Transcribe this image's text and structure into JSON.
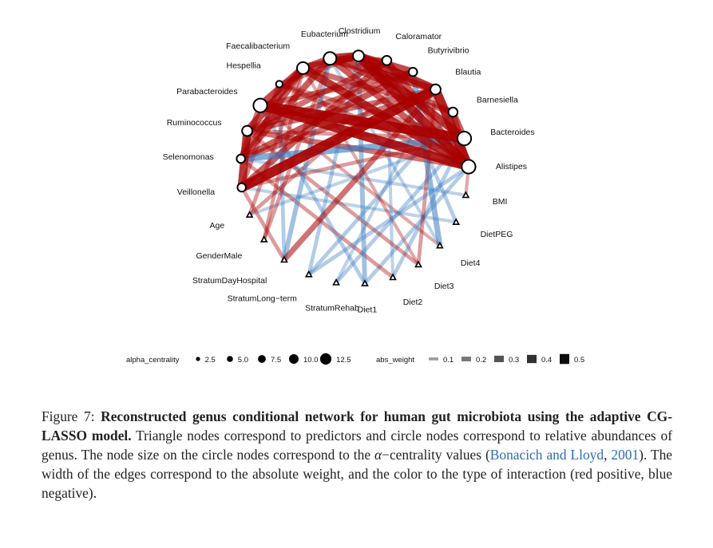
{
  "legend": {
    "centrality_title": "alpha_centrality",
    "centrality_items": [
      {
        "label": "2.5",
        "value": 2.5
      },
      {
        "label": "5.0",
        "value": 5.0
      },
      {
        "label": "7.5",
        "value": 7.5
      },
      {
        "label": "10.0",
        "value": 10.0
      },
      {
        "label": "12.5",
        "value": 12.5
      }
    ],
    "weight_title": "abs_weight",
    "weight_items": [
      {
        "label": "0.1",
        "value": 0.1
      },
      {
        "label": "0.2",
        "value": 0.2
      },
      {
        "label": "0.3",
        "value": 0.3
      },
      {
        "label": "0.4",
        "value": 0.4
      },
      {
        "label": "0.5",
        "value": 0.5
      }
    ]
  },
  "colors": {
    "positive": "#a80000",
    "negative": "#3a7cc0",
    "node_fill": "#ffffff",
    "node_stroke": "#000000",
    "link": "#2e6eb5"
  },
  "network": {
    "nodes": [
      {
        "id": "Clostridium",
        "label": "Clostridium",
        "shape": "circle",
        "centrality": 8
      },
      {
        "id": "Caloramator",
        "label": "Caloramator",
        "shape": "circle",
        "centrality": 6
      },
      {
        "id": "Butyrivibrio",
        "label": "Butyrivibrio",
        "shape": "circle",
        "centrality": 5
      },
      {
        "id": "Blautia",
        "label": "Blautia",
        "shape": "circle",
        "centrality": 7
      },
      {
        "id": "Barnesiella",
        "label": "Barnesiella",
        "shape": "circle",
        "centrality": 6
      },
      {
        "id": "Bacteroides",
        "label": "Bacteroides",
        "shape": "circle",
        "centrality": 11
      },
      {
        "id": "Alistipes",
        "label": "Alistipes",
        "shape": "circle",
        "centrality": 11
      },
      {
        "id": "BMI",
        "label": "BMI",
        "shape": "triangle"
      },
      {
        "id": "DietPEG",
        "label": "DietPEG",
        "shape": "triangle"
      },
      {
        "id": "Diet4",
        "label": "Diet4",
        "shape": "triangle"
      },
      {
        "id": "Diet3",
        "label": "Diet3",
        "shape": "triangle"
      },
      {
        "id": "Diet2",
        "label": "Diet2",
        "shape": "triangle"
      },
      {
        "id": "Diet1",
        "label": "Diet1",
        "shape": "triangle"
      },
      {
        "id": "StratumRehab",
        "label": "StratumRehab",
        "shape": "triangle"
      },
      {
        "id": "StratumLong-term",
        "label": "StratumLong−term",
        "shape": "triangle"
      },
      {
        "id": "StratumDayHospital",
        "label": "StratumDayHospital",
        "shape": "triangle"
      },
      {
        "id": "GenderMale",
        "label": "GenderMale",
        "shape": "triangle"
      },
      {
        "id": "Age",
        "label": "Age",
        "shape": "triangle"
      },
      {
        "id": "Veillonella",
        "label": "Veillonella",
        "shape": "circle",
        "centrality": 5
      },
      {
        "id": "Selenomonas",
        "label": "Selenomonas",
        "shape": "circle",
        "centrality": 5
      },
      {
        "id": "Ruminococcus",
        "label": "Ruminococcus",
        "shape": "circle",
        "centrality": 7
      },
      {
        "id": "Parabacteroides",
        "label": "Parabacteroides",
        "shape": "circle",
        "centrality": 11
      },
      {
        "id": "Hespellia",
        "label": "Hespellia",
        "shape": "circle",
        "centrality": 3
      },
      {
        "id": "Faecalibacterium",
        "label": "Faecalibacterium",
        "shape": "circle",
        "centrality": 9
      },
      {
        "id": "Eubacterium",
        "label": "Eubacterium",
        "shape": "circle",
        "centrality": 10
      }
    ],
    "edges": [
      {
        "source": "Parabacteroides",
        "target": "Bacteroides",
        "weight": 0.5,
        "sign": "positive"
      },
      {
        "source": "Parabacteroides",
        "target": "Alistipes",
        "weight": 0.45,
        "sign": "positive"
      },
      {
        "source": "Veillonella",
        "target": "Blautia",
        "weight": 0.5,
        "sign": "positive"
      },
      {
        "source": "Veillonella",
        "target": "Ruminococcus",
        "weight": 0.4,
        "sign": "positive"
      },
      {
        "source": "Clostridium",
        "target": "Alistipes",
        "weight": 0.45,
        "sign": "positive"
      },
      {
        "source": "Clostridium",
        "target": "Bacteroides",
        "weight": 0.4,
        "sign": "positive"
      },
      {
        "source": "Clostridium",
        "target": "Blautia",
        "weight": 0.4,
        "sign": "positive"
      },
      {
        "source": "Clostridium",
        "target": "Butyrivibrio",
        "weight": 0.35,
        "sign": "positive"
      },
      {
        "source": "Clostridium",
        "target": "Eubacterium",
        "weight": 0.4,
        "sign": "positive"
      },
      {
        "source": "Clostridium",
        "target": "Faecalibacterium",
        "weight": 0.35,
        "sign": "positive"
      },
      {
        "source": "Eubacterium",
        "target": "Faecalibacterium",
        "weight": 0.3,
        "sign": "positive"
      },
      {
        "source": "Faecalibacterium",
        "target": "Alistipes",
        "weight": 0.4,
        "sign": "positive"
      },
      {
        "source": "Faecalibacterium",
        "target": "Parabacteroides",
        "weight": 0.35,
        "sign": "positive"
      },
      {
        "source": "Faecalibacterium",
        "target": "Ruminococcus",
        "weight": 0.35,
        "sign": "positive"
      },
      {
        "source": "Faecalibacterium",
        "target": "Selenomonas",
        "weight": 0.3,
        "sign": "positive"
      },
      {
        "source": "Eubacterium",
        "target": "Selenomonas",
        "weight": 0.3,
        "sign": "positive"
      },
      {
        "source": "Eubacterium",
        "target": "Alistipes",
        "weight": 0.3,
        "sign": "positive"
      },
      {
        "source": "Eubacterium",
        "target": "Blautia",
        "weight": 0.35,
        "sign": "positive"
      },
      {
        "source": "Eubacterium",
        "target": "Caloramator",
        "weight": 0.25,
        "sign": "positive"
      },
      {
        "source": "Caloramator",
        "target": "Alistipes",
        "weight": 0.3,
        "sign": "positive"
      },
      {
        "source": "Caloramator",
        "target": "Ruminococcus",
        "weight": 0.25,
        "sign": "positive"
      },
      {
        "source": "Caloramator",
        "target": "Veillonella",
        "weight": 0.3,
        "sign": "positive"
      },
      {
        "source": "Butyrivibrio",
        "target": "Selenomonas",
        "weight": 0.3,
        "sign": "positive"
      },
      {
        "source": "Butyrivibrio",
        "target": "Parabacteroides",
        "weight": 0.25,
        "sign": "positive"
      },
      {
        "source": "Blautia",
        "target": "Alistipes",
        "weight": 0.45,
        "sign": "positive"
      },
      {
        "source": "Blautia",
        "target": "StratumDayHospital",
        "weight": 0.25,
        "sign": "positive"
      },
      {
        "source": "Blautia",
        "target": "Selenomonas",
        "weight": 0.25,
        "sign": "positive"
      },
      {
        "source": "Blautia",
        "target": "Ruminococcus",
        "weight": 0.25,
        "sign": "positive"
      },
      {
        "source": "Barnesiella",
        "target": "Bacteroides",
        "weight": 0.3,
        "sign": "positive"
      },
      {
        "source": "Barnesiella",
        "target": "Alistipes",
        "weight": 0.25,
        "sign": "positive"
      },
      {
        "source": "Barnesiella",
        "target": "Eubacterium",
        "weight": 0.25,
        "sign": "positive"
      },
      {
        "source": "Barnesiella",
        "target": "Faecalibacterium",
        "weight": 0.25,
        "sign": "positive"
      },
      {
        "source": "Ruminococcus",
        "target": "Alistipes",
        "weight": 0.25,
        "sign": "positive"
      },
      {
        "source": "Ruminococcus",
        "target": "Butyrivibrio",
        "weight": 0.25,
        "sign": "positive"
      },
      {
        "source": "Selenomonas",
        "target": "Parabacteroides",
        "weight": 0.25,
        "sign": "positive"
      },
      {
        "source": "Hespellia",
        "target": "Alistipes",
        "weight": 0.2,
        "sign": "positive"
      },
      {
        "source": "Hespellia",
        "target": "Clostridium",
        "weight": 0.2,
        "sign": "positive"
      },
      {
        "source": "Hespellia",
        "target": "Veillonella",
        "weight": 0.2,
        "sign": "positive"
      },
      {
        "source": "Selenomonas",
        "target": "Bacteroides",
        "weight": 0.3,
        "sign": "negative"
      },
      {
        "source": "Butyrivibrio",
        "target": "Diet4",
        "weight": 0.25,
        "sign": "negative"
      },
      {
        "source": "Eubacterium",
        "target": "StratumDayHospital",
        "weight": 0.2,
        "sign": "negative"
      },
      {
        "source": "Clostridium",
        "target": "Diet1",
        "weight": 0.2,
        "sign": "negative"
      },
      {
        "source": "Alistipes",
        "target": "Diet1",
        "weight": 0.15,
        "sign": "negative"
      },
      {
        "source": "Bacteroides",
        "target": "StratumRehab",
        "weight": 0.15,
        "sign": "negative"
      },
      {
        "source": "Bacteroides",
        "target": "Diet2",
        "weight": 0.15,
        "sign": "negative"
      },
      {
        "source": "Ruminococcus",
        "target": "Diet3",
        "weight": 0.15,
        "sign": "positive"
      },
      {
        "source": "Selenomonas",
        "target": "Diet2",
        "weight": 0.15,
        "sign": "positive"
      },
      {
        "source": "Veillonella",
        "target": "StratumDayHospital",
        "weight": 0.15,
        "sign": "positive"
      },
      {
        "source": "Parabacteroides",
        "target": "Diet1",
        "weight": 0.15,
        "sign": "negative"
      },
      {
        "source": "Faecalibacterium",
        "target": "GenderMale",
        "weight": 0.15,
        "sign": "positive"
      },
      {
        "source": "Faecalibacterium",
        "target": "Age",
        "weight": 0.15,
        "sign": "positive"
      },
      {
        "source": "Barnesiella",
        "target": "StratumLong-term",
        "weight": 0.15,
        "sign": "negative"
      },
      {
        "source": "Caloramator",
        "target": "DietPEG",
        "weight": 0.15,
        "sign": "negative"
      },
      {
        "source": "Hespellia",
        "target": "StratumDayHospital",
        "weight": 0.15,
        "sign": "negative"
      },
      {
        "source": "Blautia",
        "target": "Diet3",
        "weight": 0.15,
        "sign": "positive"
      },
      {
        "source": "Alistipes",
        "target": "StratumLong-term",
        "weight": 0.15,
        "sign": "negative"
      },
      {
        "source": "Bacteroides",
        "target": "Veillonella",
        "weight": 0.15,
        "sign": "positive"
      },
      {
        "source": "Eubacterium",
        "target": "GenderMale",
        "weight": 0.15,
        "sign": "positive"
      },
      {
        "source": "Butyrivibrio",
        "target": "Age",
        "weight": 0.15,
        "sign": "positive"
      },
      {
        "source": "Clostridium",
        "target": "StratumLong-term",
        "weight": 0.15,
        "sign": "negative"
      },
      {
        "source": "Hespellia",
        "target": "Bacteroides",
        "weight": 0.15,
        "sign": "positive"
      },
      {
        "source": "Ruminococcus",
        "target": "Bacteroides",
        "weight": 0.15,
        "sign": "positive"
      },
      {
        "source": "Selenomonas",
        "target": "BMI",
        "weight": 0.12,
        "sign": "negative"
      },
      {
        "source": "Veillonella",
        "target": "DietPEG",
        "weight": 0.12,
        "sign": "negative"
      },
      {
        "source": "Parabacteroides",
        "target": "Diet4",
        "weight": 0.12,
        "sign": "positive"
      },
      {
        "source": "Blautia",
        "target": "StratumRehab",
        "weight": 0.12,
        "sign": "negative"
      },
      {
        "source": "Caloramator",
        "target": "Diet2",
        "weight": 0.12,
        "sign": "negative"
      },
      {
        "source": "Faecalibacterium",
        "target": "Diet3",
        "weight": 0.12,
        "sign": "positive"
      },
      {
        "source": "Eubacterium",
        "target": "Diet4",
        "weight": 0.12,
        "sign": "negative"
      },
      {
        "source": "Alistipes",
        "target": "BMI",
        "weight": 0.12,
        "sign": "positive"
      },
      {
        "source": "Bacteroides",
        "target": "Age",
        "weight": 0.12,
        "sign": "negative"
      }
    ]
  },
  "caption": {
    "figure_label": "Figure 7:",
    "bold_title": "Reconstructed genus conditional network for human gut microbiota using the adaptive CG-LASSO model.",
    "text_part1": "Triangle nodes correspond to predictors and circle nodes correspond to relative abundances of genus. The node size on the circle nodes correspond to the ",
    "alpha": "α",
    "text_part2": "−centrality values (",
    "citation_authors": "Bonacich and Lloyd",
    "citation_sep": ", ",
    "citation_year": "2001",
    "text_part3": "). The width of the edges correspond to the absolute weight, and the color to the type of interaction (red positive, blue negative)."
  }
}
